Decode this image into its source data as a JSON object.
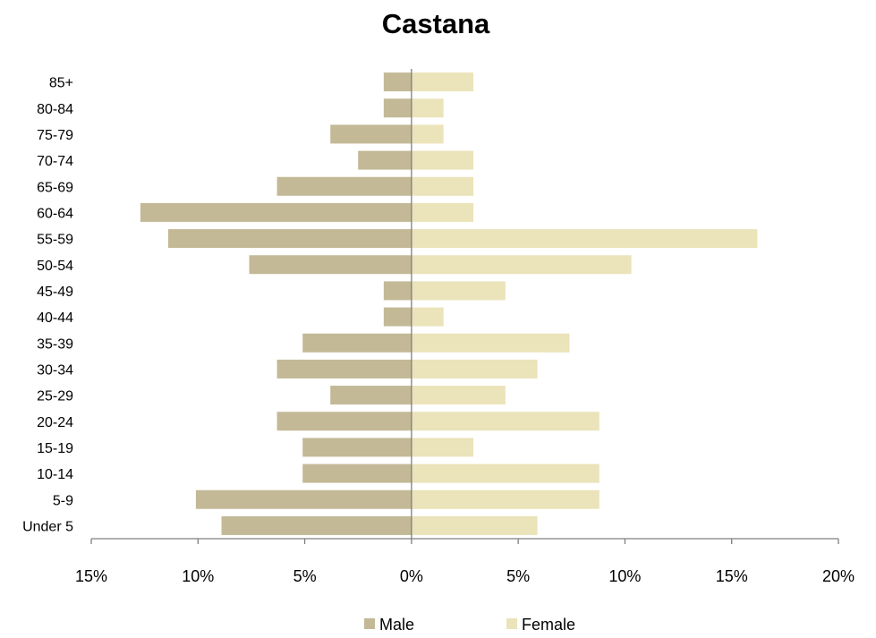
{
  "chart_data": {
    "type": "bar",
    "orientation": "horizontal-population-pyramid",
    "title": "Castana",
    "categories": [
      "85+",
      "80-84",
      "75-79",
      "70-74",
      "65-69",
      "60-64",
      "55-59",
      "50-54",
      "45-49",
      "40-44",
      "35-39",
      "30-34",
      "25-29",
      "20-24",
      "15-19",
      "10-14",
      "5-9",
      "Under 5"
    ],
    "series": [
      {
        "name": "Male",
        "color": "#c4b996",
        "values": [
          1.3,
          1.3,
          3.8,
          2.5,
          6.3,
          12.7,
          11.4,
          7.6,
          1.3,
          1.3,
          5.1,
          6.3,
          3.8,
          6.3,
          5.1,
          5.1,
          10.1,
          8.9
        ]
      },
      {
        "name": "Female",
        "color": "#ebe3b9",
        "values": [
          2.9,
          1.5,
          1.5,
          2.9,
          2.9,
          2.9,
          16.2,
          10.3,
          4.4,
          1.5,
          7.4,
          5.9,
          4.4,
          8.8,
          2.9,
          8.8,
          8.8,
          5.9
        ]
      }
    ],
    "x_ticks": [
      "15%",
      "10%",
      "5%",
      "0%",
      "5%",
      "10%",
      "15%",
      "20%"
    ],
    "xlim": [
      -15,
      20
    ],
    "grid": false,
    "legend_position": "bottom",
    "axis_color": "#7f7f7f"
  }
}
